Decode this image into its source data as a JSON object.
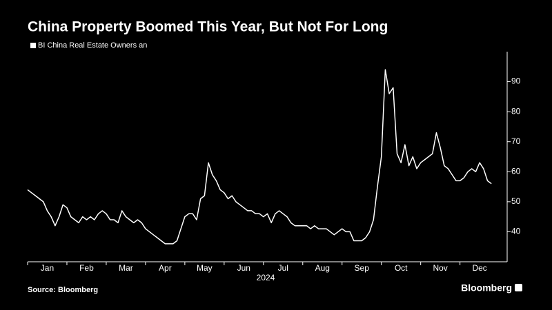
{
  "chart_data": {
    "type": "line",
    "title": "China Property Boomed This Year, But Not For Long",
    "xlabel": "2024",
    "source": "Source: Bloomberg",
    "brand": "Bloomberg",
    "series": [
      {
        "name": "BI China Real Estate Owners an",
        "color": "#ffffff",
        "values": [
          54,
          53,
          52,
          51,
          50,
          47,
          45,
          42,
          45,
          49,
          48,
          45,
          44,
          43,
          45,
          44,
          45,
          44,
          46,
          47,
          46,
          44,
          44,
          43,
          47,
          45,
          44,
          43,
          44,
          43,
          41,
          40,
          39,
          38,
          37,
          36,
          36,
          36,
          37,
          41,
          45,
          46,
          46,
          44,
          51,
          52,
          63,
          59,
          57,
          54,
          53,
          51,
          52,
          50,
          49,
          48,
          47,
          47,
          46,
          46,
          45,
          46,
          43,
          46,
          47,
          46,
          45,
          43,
          42,
          42,
          42,
          42,
          41,
          42,
          41,
          41,
          41,
          40,
          39,
          40,
          41,
          40,
          40,
          37,
          37,
          37,
          38,
          40,
          44,
          55,
          65,
          94,
          86,
          88,
          66,
          63,
          69,
          62,
          65,
          61,
          63,
          64,
          65,
          66,
          73,
          68,
          62,
          61,
          59,
          57,
          57,
          58,
          60,
          61,
          60,
          63,
          61,
          57,
          56
        ]
      }
    ],
    "xlim": [
      0,
      122
    ],
    "xticks": [
      {
        "value": 5,
        "label": "Jan"
      },
      {
        "value": 15,
        "label": "Feb"
      },
      {
        "value": 25,
        "label": "Mar"
      },
      {
        "value": 35,
        "label": "Apr"
      },
      {
        "value": 45,
        "label": "May"
      },
      {
        "value": 55,
        "label": "Jun"
      },
      {
        "value": 65,
        "label": "Jul"
      },
      {
        "value": 75,
        "label": "Aug"
      },
      {
        "value": 85,
        "label": "Sep"
      },
      {
        "value": 95,
        "label": "Oct"
      },
      {
        "value": 105,
        "label": "Nov"
      },
      {
        "value": 115,
        "label": "Dec"
      }
    ],
    "ylim": [
      30,
      100
    ],
    "yticks": [
      40,
      50,
      60,
      70,
      80,
      90
    ]
  }
}
